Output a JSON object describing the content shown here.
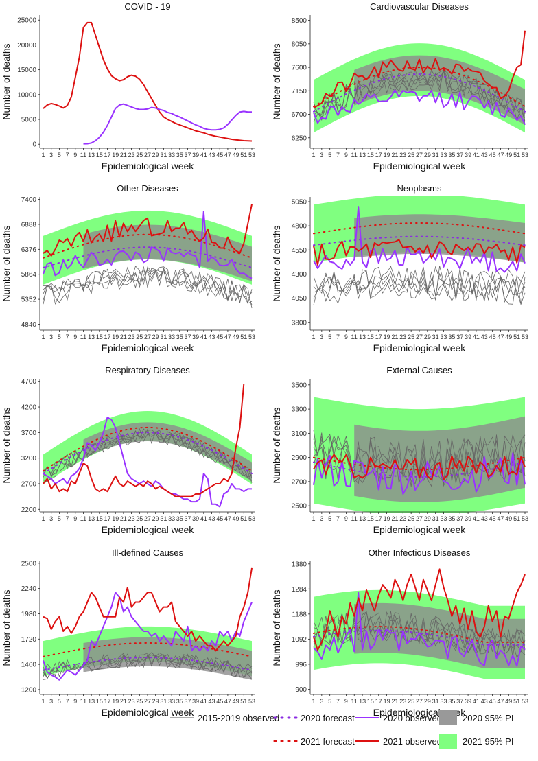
{
  "figure": {
    "x_axis_label": "Epidemiological week",
    "y_axis_label": "Number of deaths"
  },
  "legend": {
    "items": [
      {
        "key": "obs1519",
        "label": "2015-2019 observed",
        "kind": "line",
        "color": "#555555"
      },
      {
        "key": "fc2020",
        "label": "2020 forecast",
        "kind": "dotted",
        "color": "#8a2be2"
      },
      {
        "key": "obs2020",
        "label": "2020 observed",
        "kind": "line",
        "color": "#9933ff"
      },
      {
        "key": "pi2020",
        "label": "2020 95% PI",
        "kind": "box",
        "color": "#999999"
      },
      {
        "key": "fc2021",
        "label": "2021 forecast",
        "kind": "dotted",
        "color": "#dd1111"
      },
      {
        "key": "obs2021",
        "label": "2021 observed",
        "kind": "line",
        "color": "#dd1111"
      },
      {
        "key": "pi2021",
        "label": "2021 95% PI",
        "kind": "box",
        "color": "#80ff80"
      }
    ]
  },
  "colors": {
    "obs1519": "#666666",
    "obs2020": "#9933ff",
    "obs2021": "#dd1111",
    "fc2020": "#8a2be2",
    "fc2021": "#dd1111",
    "pi2020": "#8c8c8c",
    "pi2021": "#80ff80"
  },
  "chart_data": [
    {
      "type": "line",
      "title": "COVID - 19",
      "xlabel": "Epidemiological week",
      "ylabel": "Number of deaths",
      "ylim": [
        -800,
        26000
      ],
      "yticks": [
        0,
        5000,
        10000,
        15000,
        20000,
        25000
      ],
      "xlim": [
        1,
        53
      ],
      "xticks": [
        1,
        3,
        5,
        7,
        9,
        11,
        13,
        15,
        17,
        19,
        21,
        23,
        25,
        27,
        29,
        31,
        33,
        35,
        37,
        39,
        41,
        43,
        45,
        47,
        49,
        51,
        53
      ],
      "series": [
        {
          "name": "2021 observed",
          "key": "obs2021",
          "x_start": 1,
          "values": [
            7200,
            7900,
            8200,
            8000,
            7700,
            7300,
            7800,
            9500,
            13500,
            17500,
            23500,
            24500,
            24500,
            22000,
            19500,
            17000,
            15200,
            13800,
            13200,
            12800,
            13000,
            13600,
            13900,
            13700,
            13100,
            12000,
            10600,
            9200,
            7800,
            6500,
            5500,
            5000,
            4600,
            4200,
            3900,
            3600,
            3300,
            3000,
            2700,
            2500,
            2300,
            2000,
            1800,
            1600,
            1450,
            1300,
            1150,
            1000,
            900,
            800,
            720,
            680,
            650
          ]
        },
        {
          "name": "2020 observed",
          "key": "obs2020",
          "x_start": 11,
          "values": [
            80,
            100,
            250,
            700,
            1400,
            2400,
            3800,
            5500,
            7200,
            7900,
            8100,
            7800,
            7500,
            7200,
            7000,
            7000,
            7100,
            7400,
            7300,
            7000,
            6800,
            6400,
            6200,
            5800,
            5500,
            5100,
            4700,
            4300,
            3900,
            3600,
            3200,
            3000,
            2900,
            2900,
            3000,
            3300,
            4000,
            4900,
            5800,
            6500,
            6600,
            6500,
            6500
          ]
        }
      ]
    },
    {
      "type": "line",
      "title": "Cardiovascular Diseases",
      "xlabel": "Epidemiological week",
      "ylabel": "Number of deaths",
      "ylim": [
        6050,
        8600
      ],
      "yticks": [
        6250,
        6700,
        7150,
        7600,
        8050,
        8500
      ],
      "xlim": [
        1,
        53
      ],
      "xticks": [
        1,
        3,
        5,
        7,
        9,
        11,
        13,
        15,
        17,
        19,
        21,
        23,
        25,
        27,
        29,
        31,
        33,
        35,
        37,
        39,
        41,
        43,
        45,
        47,
        49,
        51,
        53
      ],
      "pi2021": {
        "center": 6800,
        "amp": 700,
        "halfwidth_low": 450,
        "halfwidth_high": 560
      },
      "pi2020": {
        "center": 6800,
        "amp": 650,
        "halfwidth_low": 300,
        "halfwidth_high": 380
      },
      "forecast_2021": {
        "center": 6850,
        "amp": 750
      },
      "forecast_2020": {
        "center": 6750,
        "amp": 720
      },
      "obs1519": {
        "center": 6720,
        "amp": 680,
        "noise": 230,
        "n": 5
      },
      "obs2020": {
        "center": 6650,
        "amp": 380,
        "noise": 170,
        "span": [
          1,
          53
        ],
        "seed": 12
      },
      "obs2021": {
        "center": 6900,
        "amp": 750,
        "noise": 160,
        "span": [
          1,
          53
        ],
        "seed": 21,
        "end": [
          7000,
          7050,
          7150,
          7400,
          7600,
          7650,
          8300
        ]
      }
    },
    {
      "type": "line",
      "title": "Other Diseases",
      "xlabel": "Epidemiological week",
      "ylabel": "Number of deaths",
      "ylim": [
        4720,
        7450
      ],
      "yticks": [
        4840,
        5352,
        5864,
        6376,
        6888,
        7400
      ],
      "xlim": [
        1,
        53
      ],
      "xticks": [
        1,
        3,
        5,
        7,
        9,
        11,
        13,
        15,
        17,
        19,
        21,
        23,
        25,
        27,
        29,
        31,
        33,
        35,
        37,
        39,
        41,
        43,
        45,
        47,
        49,
        51,
        53
      ],
      "pi2021": {
        "center": 6150,
        "amp": 520,
        "halfwidth_low": 500,
        "halfwidth_high": 500
      },
      "pi2020": {
        "center": 6050,
        "amp": 450,
        "halfwidth_low": 330,
        "halfwidth_high": 380
      },
      "forecast_2021": {
        "center": 6200,
        "amp": 480
      },
      "forecast_2020": {
        "center": 6000,
        "amp": 420
      },
      "obs1519": {
        "center": 5400,
        "amp": 420,
        "noise": 230,
        "n": 5
      },
      "obs2020": {
        "center": 5950,
        "amp": 300,
        "noise": 180,
        "span": [
          1,
          53
        ],
        "seed": 33,
        "spike": {
          "x": 41,
          "v": 7150
        }
      },
      "obs2021": {
        "center": 6300,
        "amp": 520,
        "noise": 200,
        "span": [
          1,
          53
        ],
        "seed": 44,
        "end": [
          6300,
          6500,
          6900,
          7300
        ]
      }
    },
    {
      "type": "line",
      "title": "Neoplasms",
      "xlabel": "Epidemiological week",
      "ylabel": "Number of deaths",
      "ylim": [
        3720,
        5100
      ],
      "yticks": [
        3800,
        4050,
        4300,
        4550,
        4800,
        5050
      ],
      "xlim": [
        1,
        53
      ],
      "xticks": [
        1,
        3,
        5,
        7,
        9,
        11,
        13,
        15,
        17,
        19,
        21,
        23,
        25,
        27,
        29,
        31,
        33,
        35,
        37,
        39,
        41,
        43,
        45,
        47,
        49,
        51,
        53
      ],
      "pi2021": {
        "center": 4720,
        "amp": 110,
        "halfwidth_low": 300,
        "halfwidth_high": 300
      },
      "pi2020": {
        "center": 4600,
        "amp": 90,
        "halfwidth_low": 180,
        "halfwidth_high": 230
      },
      "forecast_2021": {
        "center": 4720,
        "amp": 110
      },
      "forecast_2020": {
        "center": 4600,
        "amp": 90
      },
      "obs1519": {
        "center": 4150,
        "amp": 60,
        "noise": 180,
        "n": 5
      },
      "obs2020": {
        "center": 4400,
        "amp": 80,
        "noise": 110,
        "span": [
          1,
          53
        ],
        "seed": 55,
        "spike": {
          "x": 12,
          "v": 5000
        }
      },
      "obs2021": {
        "center": 4500,
        "amp": 60,
        "noise": 120,
        "span": [
          1,
          53
        ],
        "seed": 66
      }
    },
    {
      "type": "line",
      "title": "Respiratory Diseases",
      "xlabel": "Epidemiological week",
      "ylabel": "Number of deaths",
      "ylim": [
        2150,
        4750
      ],
      "yticks": [
        2200,
        2700,
        3200,
        3700,
        4200,
        4700
      ],
      "xlim": [
        1,
        53
      ],
      "xticks": [
        1,
        3,
        5,
        7,
        9,
        11,
        13,
        15,
        17,
        19,
        21,
        23,
        25,
        27,
        29,
        31,
        33,
        35,
        37,
        39,
        41,
        43,
        45,
        47,
        49,
        51,
        53
      ],
      "pi2021": {
        "center": 2950,
        "amp": 850,
        "halfwidth_low": 260,
        "halfwidth_high": 320
      },
      "pi2020": {
        "center": 2900,
        "amp": 780,
        "halfwidth_low": 150,
        "halfwidth_high": 220
      },
      "forecast_2021": {
        "center": 2950,
        "amp": 850
      },
      "forecast_2020": {
        "center": 2900,
        "amp": 800
      },
      "obs1519": {
        "center": 2850,
        "amp": 780,
        "noise": 150,
        "n": 5
      },
      "obs2020": {
        "values": [
          2900,
          2850,
          2800,
          2700,
          2750,
          2800,
          2700,
          2850,
          2900,
          3000,
          3200,
          3500,
          3450,
          3350,
          3500,
          3700,
          4000,
          3950,
          3800,
          3500,
          3200,
          2900,
          2800,
          2750,
          2700,
          2750,
          2700,
          2650,
          2750,
          2700,
          2600,
          2550,
          2500,
          2500,
          2450,
          2400,
          2400,
          2350,
          2350,
          2400,
          2900,
          2800,
          2300,
          2300,
          2250,
          2500,
          2550,
          2700,
          2600,
          2600,
          2550,
          2600,
          2600
        ]
      },
      "obs2021": {
        "values": [
          2700,
          2800,
          2600,
          2700,
          2550,
          2600,
          2550,
          2750,
          2700,
          2900,
          3100,
          3050,
          2800,
          2600,
          2550,
          2600,
          2550,
          2700,
          2850,
          2700,
          2650,
          2750,
          2700,
          2650,
          2700,
          2650,
          2750,
          2700,
          2600,
          2650,
          2600,
          2550,
          2500,
          2450,
          2450,
          2450,
          2450,
          2450,
          2500,
          2500,
          2550,
          2600,
          2650,
          2700,
          2700,
          2800,
          2750,
          2900,
          3400,
          3800,
          4650
        ]
      }
    },
    {
      "type": "line",
      "title": "External Causes",
      "xlabel": "Epidemiological week",
      "ylabel": "Number of deaths",
      "ylim": [
        2450,
        3550
      ],
      "yticks": [
        2500,
        2700,
        2900,
        3100,
        3300,
        3500
      ],
      "xlim": [
        1,
        53
      ],
      "xticks": [
        1,
        3,
        5,
        7,
        9,
        11,
        13,
        15,
        17,
        19,
        21,
        23,
        25,
        27,
        29,
        31,
        33,
        35,
        37,
        39,
        41,
        43,
        45,
        47,
        49,
        51,
        53
      ],
      "pi2021": {
        "center": 2900,
        "amp": -100,
        "halfwidth_low": 380,
        "halfwidth_high": 500
      },
      "pi2020": {
        "center": 2900,
        "amp": -120,
        "halfwidth_low": 250,
        "halfwidth_high": 340
      },
      "forecast_2021": {
        "center": 2900,
        "amp": -100
      },
      "forecast_2020": {
        "center": 2860,
        "amp": -120
      },
      "obs1519": {
        "center": 2930,
        "amp": -80,
        "noise": 200,
        "n": 5
      },
      "obs2020": {
        "center": 2800,
        "amp": -60,
        "noise": 150,
        "span": [
          1,
          53
        ],
        "seed": 77
      },
      "obs2021": {
        "center": 2850,
        "amp": -40,
        "noise": 100,
        "span": [
          1,
          53
        ],
        "seed": 88
      }
    },
    {
      "type": "line",
      "title": "Ill-defined Causes",
      "xlabel": "Epidemiological week",
      "ylabel": "Number of deaths",
      "ylim": [
        1150,
        2520
      ],
      "yticks": [
        1200,
        1460,
        1720,
        1980,
        2240,
        2500
      ],
      "xlim": [
        1,
        53
      ],
      "xticks": [
        1,
        3,
        5,
        7,
        9,
        11,
        13,
        15,
        17,
        19,
        21,
        23,
        25,
        27,
        29,
        31,
        33,
        35,
        37,
        39,
        41,
        43,
        45,
        47,
        49,
        51,
        53
      ],
      "pi2021": {
        "center": 1500,
        "amp": 150,
        "halfwidth_low": 160,
        "halfwidth_high": 200
      },
      "pi2020": {
        "center": 1420,
        "amp": 140,
        "halfwidth_low": 120,
        "halfwidth_high": 180
      },
      "forecast_2021": {
        "center": 1540,
        "amp": 140
      },
      "forecast_2020": {
        "center": 1400,
        "amp": 130
      },
      "obs1519": {
        "center": 1380,
        "amp": 130,
        "noise": 80,
        "n": 5
      },
      "obs2020": {
        "values": [
          1500,
          1380,
          1350,
          1330,
          1300,
          1350,
          1400,
          1380,
          1350,
          1400,
          1450,
          1500,
          1700,
          1650,
          1750,
          1850,
          1950,
          2050,
          2200,
          2150,
          2000,
          2050,
          1950,
          1900,
          1850,
          1800,
          1800,
          1750,
          1780,
          1700,
          1750,
          1700,
          1650,
          1800,
          1750,
          1700,
          1850,
          1600,
          1650,
          1600,
          1650,
          1600,
          1700,
          1650,
          1800,
          1750,
          1800,
          1700,
          1800,
          1750,
          1900,
          2000,
          2100
        ]
      },
      "obs2021": {
        "values": [
          1950,
          1930,
          1820,
          1900,
          1950,
          1800,
          1850,
          1780,
          1850,
          1950,
          2000,
          2100,
          2200,
          2150,
          2050,
          1950,
          1950,
          1950,
          1950,
          2150,
          2100,
          2250,
          2050,
          2100,
          2100,
          2150,
          2200,
          2200,
          2100,
          2000,
          2050,
          2050,
          2100,
          1900,
          1850,
          1800,
          1750,
          1800,
          1700,
          1750,
          1700,
          1650,
          1650,
          1600,
          1650,
          1700,
          1650,
          1700,
          1750,
          1950,
          2050,
          2200,
          2450
        ]
      }
    },
    {
      "type": "line",
      "title": "Other Infectious Diseases",
      "xlabel": "Epidemiological week",
      "ylabel": "Number of deaths",
      "ylim": [
        880,
        1390
      ],
      "yticks": [
        900,
        996,
        1092,
        1188,
        1284,
        1380
      ],
      "xlim": [
        1,
        53
      ],
      "xticks": [
        1,
        3,
        5,
        7,
        9,
        11,
        13,
        15,
        17,
        19,
        21,
        23,
        25,
        27,
        29,
        31,
        33,
        35,
        37,
        39,
        41,
        43,
        45,
        47,
        49,
        51,
        53
      ],
      "pi2021": {
        "center": 1080,
        "amp": 60,
        "phase": -10,
        "halfwidth_low": 140,
        "halfwidth_high": 140
      },
      "pi2020": {
        "center": 1070,
        "amp": 60,
        "phase": -10,
        "halfwidth_low": 90,
        "halfwidth_high": 100
      },
      "forecast_2021": {
        "center": 1080,
        "amp": 60,
        "phase": -10
      },
      "forecast_2020": {
        "center": 1070,
        "amp": 55,
        "phase": -10
      },
      "obs1519": {
        "center": 1080,
        "amp": 60,
        "noise": 60,
        "n": 5,
        "phase": -10
      },
      "obs2020": {
        "center": 1040,
        "amp": 40,
        "noise": 55,
        "span": [
          1,
          53
        ],
        "seed": 99,
        "phase": -10,
        "spike": {
          "x": 12,
          "v": 1270
        }
      },
      "obs2021": {
        "values": [
          1100,
          1050,
          1080,
          1120,
          1200,
          1150,
          1100,
          1180,
          1150,
          1230,
          1180,
          1250,
          1200,
          1280,
          1240,
          1200,
          1260,
          1300,
          1280,
          1250,
          1320,
          1290,
          1240,
          1300,
          1340,
          1290,
          1240,
          1320,
          1280,
          1240,
          1300,
          1360,
          1290,
          1240,
          1180,
          1220,
          1150,
          1210,
          1130,
          1200,
          1120,
          1100,
          1140,
          1220,
          1160,
          1200,
          1100,
          1180,
          1170,
          1220,
          1270,
          1300,
          1340
        ]
      }
    }
  ]
}
